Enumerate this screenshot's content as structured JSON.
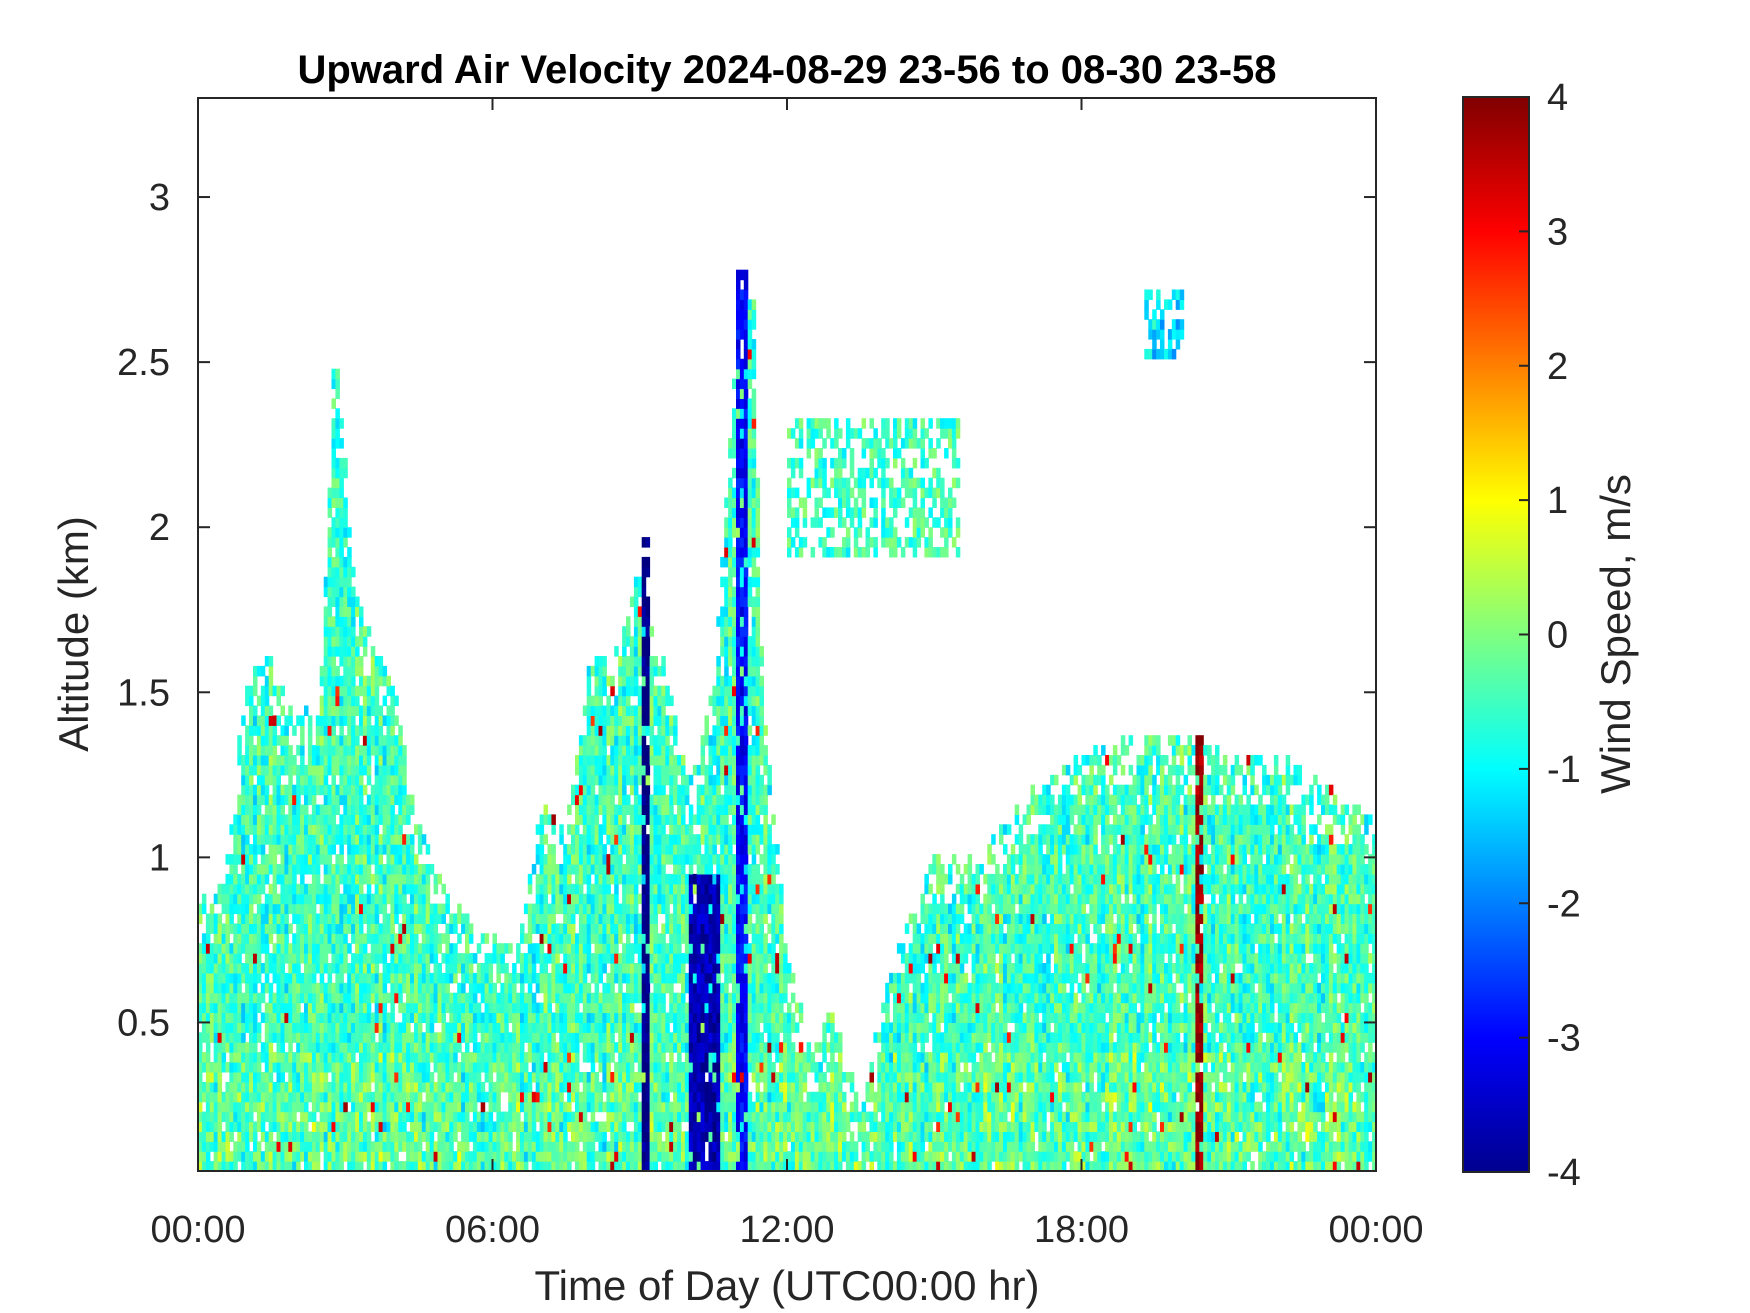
{
  "chart_data": {
    "type": "heatmap",
    "title": "Upward Air Velocity 2024-08-29 23-56 to 08-30 23-58",
    "xlabel": "Time of Day (UTC00:00 hr)",
    "ylabel": "Altitude (km)",
    "colorbar_label": "Wind Speed, m/s",
    "colormap": "jet",
    "x_ticks": [
      "00:00",
      "06:00",
      "12:00",
      "18:00",
      "00:00"
    ],
    "x_tick_hours": [
      0,
      6,
      12,
      18,
      24
    ],
    "xlim_hours": [
      0,
      24
    ],
    "y_ticks": [
      "0.5",
      "1",
      "1.5",
      "2",
      "2.5",
      "3"
    ],
    "y_tick_values": [
      0.5,
      1,
      1.5,
      2,
      2.5,
      3
    ],
    "ylim": [
      0.05,
      3.3
    ],
    "c_ticks": [
      "-4",
      "-3",
      "-2",
      "-1",
      "0",
      "1",
      "2",
      "3",
      "4"
    ],
    "c_tick_values": [
      -4,
      -3,
      -2,
      -1,
      0,
      1,
      2,
      3,
      4
    ],
    "clim": [
      -4,
      4
    ],
    "background": "#ffffff",
    "echo_top_profile": {
      "hour": [
        0,
        0.5,
        1,
        1.5,
        2,
        2.5,
        2.8,
        3.2,
        4,
        4.5,
        5,
        5.5,
        6,
        6.5,
        7,
        7.5,
        8,
        8.5,
        9,
        9.2,
        9.5,
        10,
        10.5,
        11,
        11.3,
        11.5,
        12,
        12.5,
        13,
        13.5,
        14,
        14.5,
        15,
        16,
        17,
        18,
        19,
        20,
        21,
        22,
        23,
        24
      ],
      "top_km": [
        0.85,
        0.9,
        1.55,
        1.6,
        1.4,
        1.5,
        2.6,
        1.8,
        1.5,
        1.1,
        0.9,
        0.8,
        0.75,
        0.7,
        1.15,
        1.1,
        1.6,
        1.6,
        1.9,
        1.7,
        1.6,
        1.2,
        1.5,
        2.6,
        2.8,
        1.5,
        0.7,
        0.4,
        0.55,
        0.2,
        0.6,
        0.8,
        1.0,
        1.0,
        1.2,
        1.3,
        1.35,
        1.35,
        1.3,
        1.3,
        1.2,
        1.1
      ]
    },
    "features": [
      {
        "label": "strong downdraft column",
        "hour_start": 9.0,
        "hour_end": 9.2,
        "top_km": 1.95,
        "velocity": -4.0
      },
      {
        "label": "strong downdraft core",
        "hour_start": 10.0,
        "hour_end": 10.6,
        "top_km": 0.95,
        "velocity": -3.6
      },
      {
        "label": "downdraft column",
        "hour_start": 10.9,
        "hour_end": 11.2,
        "top_km": 2.75,
        "velocity": -3.0
      },
      {
        "label": "updraft streak",
        "hour_start": 20.3,
        "hour_end": 20.45,
        "top_km": 1.35,
        "velocity": 3.8
      },
      {
        "label": "elevated layer",
        "hour_start": 12.0,
        "hour_end": 15.5,
        "bottom_km": 1.9,
        "top_km": 2.3,
        "velocity": -0.5
      },
      {
        "label": "elevated patch",
        "hour_start": 19.2,
        "hour_end": 20.0,
        "bottom_km": 2.5,
        "top_km": 2.7,
        "velocity": -1.2
      }
    ]
  }
}
